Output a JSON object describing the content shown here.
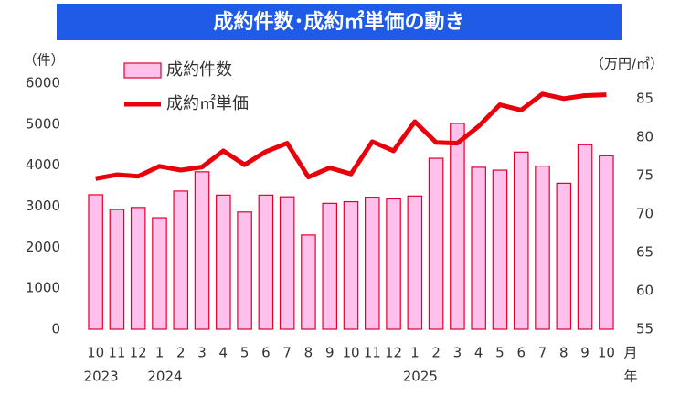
{
  "chart_data": {
    "type": "bar_line",
    "title": "成約件数･成約㎡単価の動き",
    "y_axis_label": "（件）",
    "y2_axis_label": "（万円/㎡）",
    "x_axis_label": "月",
    "x_axis_label2": "年",
    "categories": [
      "10",
      "11",
      "12",
      "1",
      "2",
      "3",
      "4",
      "5",
      "6",
      "7",
      "8",
      "9",
      "10",
      "11",
      "12",
      "1",
      "2",
      "3",
      "4",
      "5",
      "6",
      "7",
      "8",
      "9",
      "10"
    ],
    "category_years": [
      "2023",
      null,
      null,
      "2024",
      null,
      null,
      null,
      null,
      null,
      null,
      null,
      null,
      null,
      null,
      null,
      "2025",
      null,
      null,
      null,
      null,
      null,
      null,
      null,
      null,
      null
    ],
    "series": [
      {
        "name": "成約件数",
        "type": "bar",
        "color": "#ffc0ec",
        "edge_color": "#e0002e",
        "values": [
          3280,
          2920,
          2970,
          2720,
          3370,
          3840,
          3270,
          2860,
          3270,
          3230,
          2300,
          3070,
          3110,
          3220,
          3180,
          3250,
          4170,
          5020,
          3950,
          3880,
          4320,
          3980,
          3560,
          4500,
          4230
        ]
      },
      {
        "name": "成約㎡単価",
        "type": "line",
        "color": "#e8000a",
        "axis": "y2",
        "values": [
          74.6,
          75.1,
          74.9,
          76.2,
          75.7,
          76.1,
          78.2,
          76.4,
          78.1,
          79.2,
          74.8,
          76.0,
          75.2,
          79.4,
          78.2,
          82.0,
          79.3,
          79.2,
          81.4,
          84.2,
          83.5,
          85.6,
          85.0,
          85.4,
          85.5
        ]
      }
    ],
    "ylim": [
      0,
      6000
    ],
    "yticks": [
      0,
      1000,
      2000,
      3000,
      4000,
      5000,
      6000
    ],
    "y2lim": [
      55,
      87
    ],
    "y2ticks": [
      55,
      60,
      65,
      70,
      75,
      80,
      85
    ]
  }
}
